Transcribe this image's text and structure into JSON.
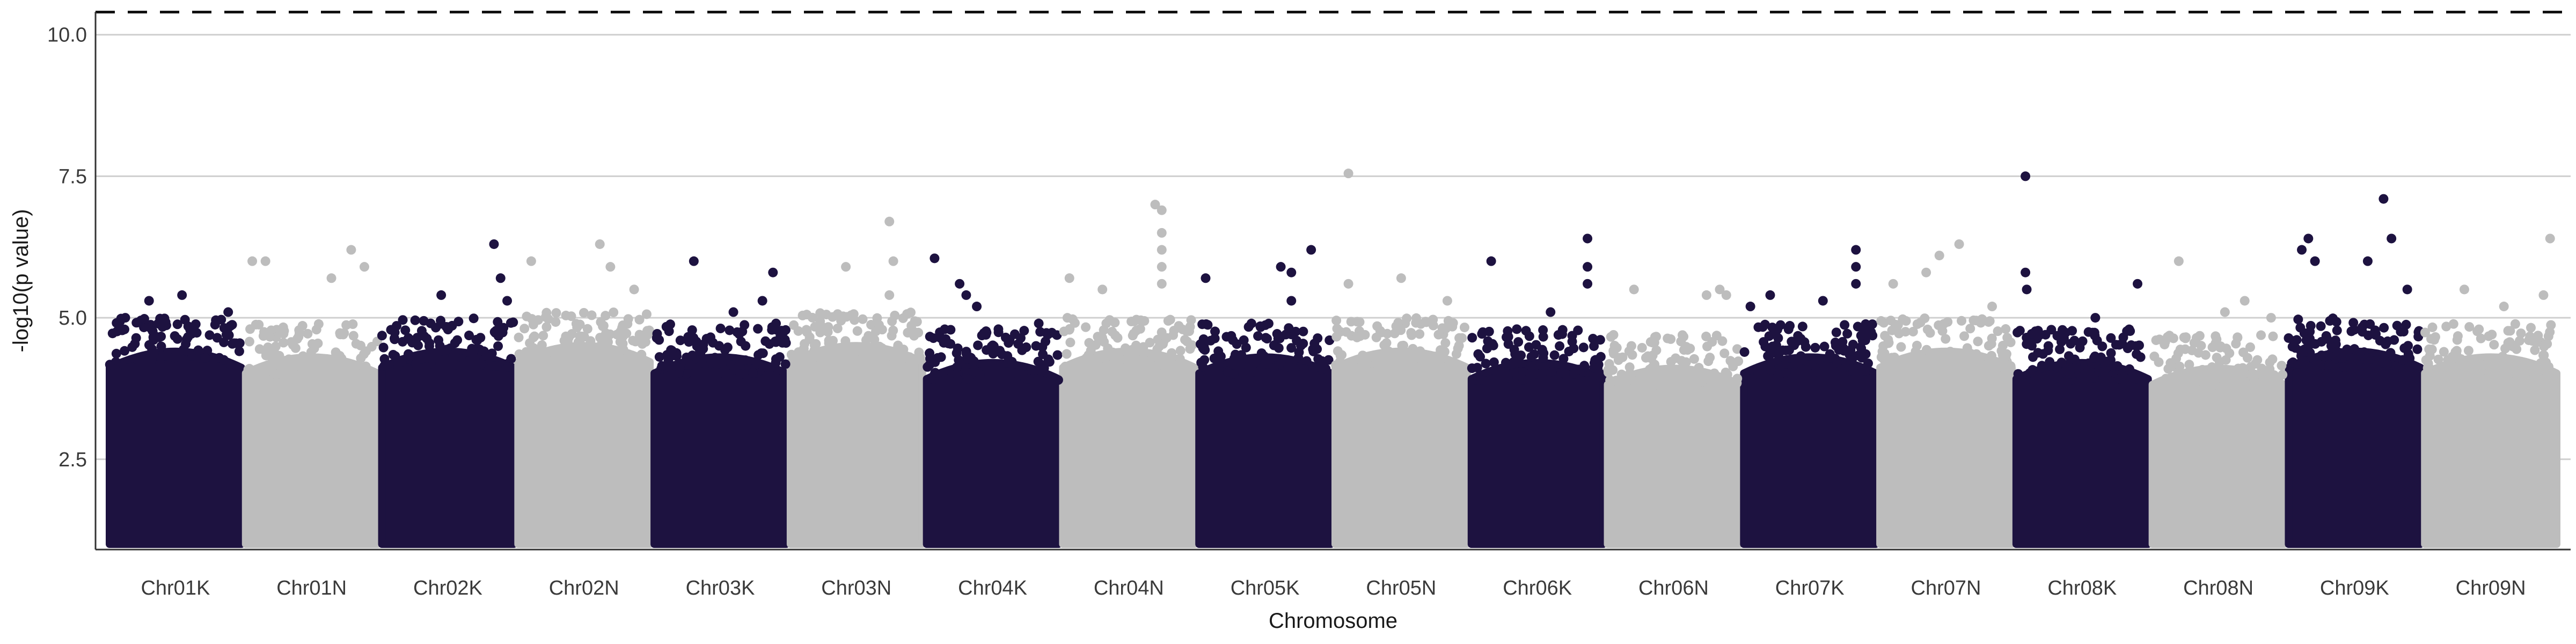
{
  "chart_data": {
    "type": "scatter",
    "subtype": "manhattan",
    "title": "",
    "xlabel": "Chromosome",
    "ylabel": "-log10(p value)",
    "ylim": [
      1.0,
      10.5
    ],
    "y_ticks": [
      2.5,
      5.0,
      7.5,
      10.0
    ],
    "y_tick_labels": [
      "2.5",
      "5.0",
      "7.5",
      "10.0"
    ],
    "grid": "horizontal major",
    "legend": "none",
    "significance_threshold": 10.4,
    "colors": {
      "odd": "#1d1240",
      "even": "#bdbdbd",
      "threshold": "#111111"
    },
    "categories": [
      "Chr01K",
      "Chr01N",
      "Chr02K",
      "Chr02N",
      "Chr03K",
      "Chr03N",
      "Chr04K",
      "Chr04N",
      "Chr05K",
      "Chr05N",
      "Chr06K",
      "Chr06N",
      "Chr07K",
      "Chr07N",
      "Chr08K",
      "Chr08N",
      "Chr09K",
      "Chr09N"
    ],
    "series": [
      {
        "chromosome": "Chr01K",
        "base_top": 4.5,
        "top_points": [
          {
            "pos": 0.3,
            "y": 5.3
          },
          {
            "pos": 0.55,
            "y": 5.4
          },
          {
            "pos": 0.9,
            "y": 5.1
          },
          {
            "pos": 0.12,
            "y": 5.0
          }
        ]
      },
      {
        "chromosome": "Chr01N",
        "base_top": 4.4,
        "top_points": [
          {
            "pos": 0.05,
            "y": 6.0
          },
          {
            "pos": 0.15,
            "y": 6.0
          },
          {
            "pos": 0.65,
            "y": 5.7
          },
          {
            "pos": 0.8,
            "y": 6.2
          },
          {
            "pos": 0.9,
            "y": 5.9
          }
        ]
      },
      {
        "chromosome": "Chr02K",
        "base_top": 4.5,
        "top_points": [
          {
            "pos": 0.45,
            "y": 5.4
          },
          {
            "pos": 0.85,
            "y": 6.3
          },
          {
            "pos": 0.9,
            "y": 5.7
          },
          {
            "pos": 0.95,
            "y": 5.3
          }
        ]
      },
      {
        "chromosome": "Chr02N",
        "base_top": 4.6,
        "top_points": [
          {
            "pos": 0.1,
            "y": 6.0
          },
          {
            "pos": 0.62,
            "y": 6.3
          },
          {
            "pos": 0.7,
            "y": 5.9
          },
          {
            "pos": 0.88,
            "y": 5.5
          }
        ]
      },
      {
        "chromosome": "Chr03K",
        "base_top": 4.4,
        "top_points": [
          {
            "pos": 0.3,
            "y": 6.0
          },
          {
            "pos": 0.9,
            "y": 5.8
          },
          {
            "pos": 0.82,
            "y": 5.3
          },
          {
            "pos": 0.6,
            "y": 5.1
          }
        ]
      },
      {
        "chromosome": "Chr03N",
        "base_top": 4.6,
        "top_points": [
          {
            "pos": 0.42,
            "y": 5.9
          },
          {
            "pos": 0.75,
            "y": 5.4
          },
          {
            "pos": 0.75,
            "y": 6.7
          },
          {
            "pos": 0.78,
            "y": 6.0
          }
        ]
      },
      {
        "chromosome": "Chr04K",
        "base_top": 4.3,
        "top_points": [
          {
            "pos": 0.06,
            "y": 6.05
          },
          {
            "pos": 0.25,
            "y": 5.6
          },
          {
            "pos": 0.3,
            "y": 5.4
          },
          {
            "pos": 0.38,
            "y": 5.2
          },
          {
            "pos": 0.85,
            "y": 4.9
          }
        ]
      },
      {
        "chromosome": "Chr04N",
        "base_top": 4.5,
        "top_points": [
          {
            "pos": 0.05,
            "y": 5.7
          },
          {
            "pos": 0.3,
            "y": 5.5
          },
          {
            "pos": 0.7,
            "y": 7.0
          },
          {
            "pos": 0.75,
            "y": 6.9
          },
          {
            "pos": 0.75,
            "y": 6.5
          },
          {
            "pos": 0.75,
            "y": 6.2
          },
          {
            "pos": 0.75,
            "y": 5.9
          },
          {
            "pos": 0.75,
            "y": 5.6
          }
        ]
      },
      {
        "chromosome": "Chr05K",
        "base_top": 4.4,
        "top_points": [
          {
            "pos": 0.05,
            "y": 5.7
          },
          {
            "pos": 0.62,
            "y": 5.9
          },
          {
            "pos": 0.7,
            "y": 5.8
          },
          {
            "pos": 0.85,
            "y": 6.2
          },
          {
            "pos": 0.7,
            "y": 5.3
          }
        ]
      },
      {
        "chromosome": "Chr05N",
        "base_top": 4.5,
        "top_points": [
          {
            "pos": 0.1,
            "y": 7.55
          },
          {
            "pos": 0.1,
            "y": 5.6
          },
          {
            "pos": 0.5,
            "y": 5.7
          },
          {
            "pos": 0.85,
            "y": 5.3
          }
        ]
      },
      {
        "chromosome": "Chr06K",
        "base_top": 4.3,
        "top_points": [
          {
            "pos": 0.15,
            "y": 6.0
          },
          {
            "pos": 0.88,
            "y": 6.4
          },
          {
            "pos": 0.88,
            "y": 5.9
          },
          {
            "pos": 0.88,
            "y": 5.6
          },
          {
            "pos": 0.6,
            "y": 5.1
          }
        ]
      },
      {
        "chromosome": "Chr06N",
        "base_top": 4.2,
        "top_points": [
          {
            "pos": 0.2,
            "y": 5.5
          },
          {
            "pos": 0.75,
            "y": 5.4
          },
          {
            "pos": 0.85,
            "y": 5.5
          },
          {
            "pos": 0.9,
            "y": 5.4
          }
        ]
      },
      {
        "chromosome": "Chr07K",
        "base_top": 4.4,
        "top_points": [
          {
            "pos": 0.05,
            "y": 5.2
          },
          {
            "pos": 0.2,
            "y": 5.4
          },
          {
            "pos": 0.85,
            "y": 6.2
          },
          {
            "pos": 0.85,
            "y": 5.9
          },
          {
            "pos": 0.85,
            "y": 5.6
          },
          {
            "pos": 0.6,
            "y": 5.3
          }
        ]
      },
      {
        "chromosome": "Chr07N",
        "base_top": 4.5,
        "top_points": [
          {
            "pos": 0.1,
            "y": 5.6
          },
          {
            "pos": 0.35,
            "y": 5.8
          },
          {
            "pos": 0.45,
            "y": 6.1
          },
          {
            "pos": 0.6,
            "y": 6.3
          },
          {
            "pos": 0.85,
            "y": 5.2
          }
        ]
      },
      {
        "chromosome": "Chr08K",
        "base_top": 4.3,
        "top_points": [
          {
            "pos": 0.07,
            "y": 7.5
          },
          {
            "pos": 0.07,
            "y": 5.8
          },
          {
            "pos": 0.08,
            "y": 5.5
          },
          {
            "pos": 0.6,
            "y": 5.0
          },
          {
            "pos": 0.92,
            "y": 5.6
          }
        ]
      },
      {
        "chromosome": "Chr08N",
        "base_top": 4.2,
        "top_points": [
          {
            "pos": 0.2,
            "y": 6.0
          },
          {
            "pos": 0.55,
            "y": 5.1
          },
          {
            "pos": 0.7,
            "y": 5.3
          },
          {
            "pos": 0.9,
            "y": 5.0
          }
        ]
      },
      {
        "chromosome": "Chr09K",
        "base_top": 4.5,
        "top_points": [
          {
            "pos": 0.1,
            "y": 6.2
          },
          {
            "pos": 0.15,
            "y": 6.4
          },
          {
            "pos": 0.2,
            "y": 6.0
          },
          {
            "pos": 0.6,
            "y": 6.0
          },
          {
            "pos": 0.72,
            "y": 7.1
          },
          {
            "pos": 0.78,
            "y": 6.4
          },
          {
            "pos": 0.9,
            "y": 5.5
          }
        ]
      },
      {
        "chromosome": "Chr09N",
        "base_top": 4.4,
        "top_points": [
          {
            "pos": 0.3,
            "y": 5.5
          },
          {
            "pos": 0.6,
            "y": 5.2
          },
          {
            "pos": 0.95,
            "y": 6.4
          },
          {
            "pos": 0.9,
            "y": 5.4
          }
        ]
      }
    ]
  }
}
